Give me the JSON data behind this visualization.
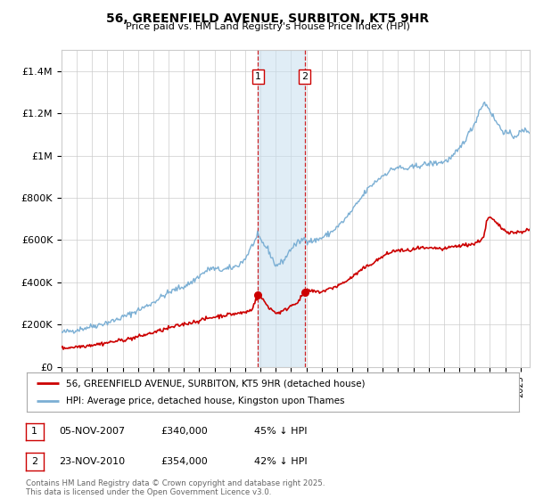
{
  "title": "56, GREENFIELD AVENUE, SURBITON, KT5 9HR",
  "subtitle": "Price paid vs. HM Land Registry's House Price Index (HPI)",
  "ylabel_ticks": [
    "£0",
    "£200K",
    "£400K",
    "£600K",
    "£800K",
    "£1M",
    "£1.2M",
    "£1.4M"
  ],
  "ylabel_values": [
    0,
    200000,
    400000,
    600000,
    800000,
    1000000,
    1200000,
    1400000
  ],
  "ylim": [
    0,
    1500000
  ],
  "xlim_start": 1995.0,
  "xlim_end": 2025.6,
  "sale1_date": 2007.85,
  "sale1_price": 340000,
  "sale1_label": "1",
  "sale2_date": 2010.9,
  "sale2_price": 354000,
  "sale2_label": "2",
  "shade_x1": 2007.85,
  "shade_x2": 2010.9,
  "hpi_color": "#7bafd4",
  "sale_color": "#cc0000",
  "legend1": "56, GREENFIELD AVENUE, SURBITON, KT5 9HR (detached house)",
  "legend2": "HPI: Average price, detached house, Kingston upon Thames",
  "table_row1": [
    "1",
    "05-NOV-2007",
    "£340,000",
    "45% ↓ HPI"
  ],
  "table_row2": [
    "2",
    "23-NOV-2010",
    "£354,000",
    "42% ↓ HPI"
  ],
  "footnote": "Contains HM Land Registry data © Crown copyright and database right 2025.\nThis data is licensed under the Open Government Licence v3.0.",
  "background_color": "#ffffff",
  "grid_color": "#cccccc",
  "hpi_anchors": [
    [
      1995.0,
      162000
    ],
    [
      1995.5,
      168000
    ],
    [
      1996.0,
      175000
    ],
    [
      1996.5,
      183000
    ],
    [
      1997.0,
      192000
    ],
    [
      1997.5,
      200000
    ],
    [
      1998.0,
      210000
    ],
    [
      1998.5,
      220000
    ],
    [
      1999.0,
      235000
    ],
    [
      1999.5,
      250000
    ],
    [
      2000.0,
      268000
    ],
    [
      2000.5,
      285000
    ],
    [
      2001.0,
      305000
    ],
    [
      2001.5,
      330000
    ],
    [
      2002.0,
      350000
    ],
    [
      2002.5,
      368000
    ],
    [
      2003.0,
      380000
    ],
    [
      2003.5,
      400000
    ],
    [
      2004.0,
      430000
    ],
    [
      2004.5,
      455000
    ],
    [
      2004.8,
      468000
    ],
    [
      2005.0,
      462000
    ],
    [
      2005.5,
      458000
    ],
    [
      2006.0,
      465000
    ],
    [
      2006.5,
      478000
    ],
    [
      2007.0,
      510000
    ],
    [
      2007.5,
      580000
    ],
    [
      2007.85,
      620000
    ],
    [
      2008.0,
      600000
    ],
    [
      2008.5,
      555000
    ],
    [
      2009.0,
      478000
    ],
    [
      2009.3,
      490000
    ],
    [
      2009.6,
      510000
    ],
    [
      2010.0,
      560000
    ],
    [
      2010.5,
      590000
    ],
    [
      2010.9,
      608000
    ],
    [
      2011.0,
      600000
    ],
    [
      2011.5,
      595000
    ],
    [
      2012.0,
      610000
    ],
    [
      2012.5,
      630000
    ],
    [
      2013.0,
      660000
    ],
    [
      2013.5,
      695000
    ],
    [
      2014.0,
      740000
    ],
    [
      2014.5,
      790000
    ],
    [
      2015.0,
      840000
    ],
    [
      2015.5,
      875000
    ],
    [
      2016.0,
      905000
    ],
    [
      2016.5,
      930000
    ],
    [
      2017.0,
      945000
    ],
    [
      2017.5,
      935000
    ],
    [
      2018.0,
      945000
    ],
    [
      2018.5,
      955000
    ],
    [
      2019.0,
      960000
    ],
    [
      2019.5,
      965000
    ],
    [
      2020.0,
      970000
    ],
    [
      2020.5,
      990000
    ],
    [
      2021.0,
      1030000
    ],
    [
      2021.5,
      1090000
    ],
    [
      2022.0,
      1150000
    ],
    [
      2022.3,
      1210000
    ],
    [
      2022.6,
      1250000
    ],
    [
      2022.9,
      1230000
    ],
    [
      2023.2,
      1185000
    ],
    [
      2023.5,
      1150000
    ],
    [
      2023.8,
      1120000
    ],
    [
      2024.0,
      1110000
    ],
    [
      2024.3,
      1100000
    ],
    [
      2024.6,
      1090000
    ],
    [
      2025.0,
      1110000
    ],
    [
      2025.3,
      1120000
    ],
    [
      2025.6,
      1115000
    ]
  ],
  "sale_anchors": [
    [
      1995.0,
      88000
    ],
    [
      1995.5,
      91000
    ],
    [
      1996.0,
      95000
    ],
    [
      1996.5,
      99000
    ],
    [
      1997.0,
      104000
    ],
    [
      1997.5,
      108000
    ],
    [
      1998.0,
      114000
    ],
    [
      1998.5,
      120000
    ],
    [
      1999.0,
      127000
    ],
    [
      1999.5,
      133000
    ],
    [
      2000.0,
      142000
    ],
    [
      2000.5,
      152000
    ],
    [
      2001.0,
      162000
    ],
    [
      2001.5,
      172000
    ],
    [
      2002.0,
      183000
    ],
    [
      2002.5,
      192000
    ],
    [
      2003.0,
      202000
    ],
    [
      2003.5,
      210000
    ],
    [
      2004.0,
      218000
    ],
    [
      2004.5,
      228000
    ],
    [
      2005.0,
      236000
    ],
    [
      2005.5,
      242000
    ],
    [
      2006.0,
      248000
    ],
    [
      2006.5,
      252000
    ],
    [
      2007.0,
      258000
    ],
    [
      2007.4,
      268000
    ],
    [
      2007.85,
      340000
    ],
    [
      2008.2,
      315000
    ],
    [
      2008.5,
      285000
    ],
    [
      2009.0,
      255000
    ],
    [
      2009.3,
      258000
    ],
    [
      2009.6,
      268000
    ],
    [
      2010.0,
      290000
    ],
    [
      2010.5,
      310000
    ],
    [
      2010.9,
      354000
    ],
    [
      2011.2,
      360000
    ],
    [
      2011.5,
      355000
    ],
    [
      2012.0,
      355000
    ],
    [
      2012.5,
      368000
    ],
    [
      2013.0,
      382000
    ],
    [
      2013.5,
      400000
    ],
    [
      2014.0,
      425000
    ],
    [
      2014.5,
      453000
    ],
    [
      2015.0,
      476000
    ],
    [
      2015.5,
      498000
    ],
    [
      2016.0,
      522000
    ],
    [
      2016.5,
      542000
    ],
    [
      2017.0,
      552000
    ],
    [
      2017.5,
      548000
    ],
    [
      2018.0,
      555000
    ],
    [
      2018.5,
      562000
    ],
    [
      2019.0,
      558000
    ],
    [
      2019.5,
      562000
    ],
    [
      2020.0,
      555000
    ],
    [
      2020.5,
      568000
    ],
    [
      2021.0,
      572000
    ],
    [
      2021.5,
      578000
    ],
    [
      2022.0,
      582000
    ],
    [
      2022.3,
      595000
    ],
    [
      2022.6,
      615000
    ],
    [
      2022.8,
      692000
    ],
    [
      2023.0,
      708000
    ],
    [
      2023.2,
      695000
    ],
    [
      2023.5,
      675000
    ],
    [
      2023.8,
      655000
    ],
    [
      2024.0,
      645000
    ],
    [
      2024.3,
      638000
    ],
    [
      2024.6,
      635000
    ],
    [
      2025.0,
      638000
    ],
    [
      2025.3,
      645000
    ],
    [
      2025.6,
      648000
    ]
  ]
}
